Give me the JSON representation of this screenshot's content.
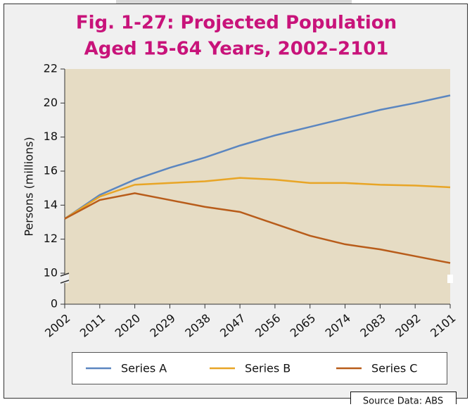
{
  "chart_data": {
    "type": "line",
    "title": "Fig. 1-27: Projected Population",
    "subtitle": "Aged 15-64 Years, 2002–2101",
    "y_label": "Persons (millions)",
    "source": "Source Data: ABS",
    "x": [
      2002,
      2011,
      2020,
      2029,
      2038,
      2047,
      2056,
      2065,
      2074,
      2083,
      2092,
      2101
    ],
    "xlim": [
      2002,
      2101
    ],
    "xticks": [
      2002,
      2011,
      2020,
      2029,
      2038,
      2047,
      2056,
      2065,
      2074,
      2083,
      2092,
      2101
    ],
    "ylim": [
      10,
      22
    ],
    "yticks": [
      0,
      10,
      12,
      14,
      16,
      18,
      20,
      22
    ],
    "axis_break": true,
    "grid": false,
    "legend": "bottom",
    "series": [
      {
        "name": "Series A",
        "color": "#5b86c0",
        "values": [
          13.2,
          14.6,
          15.5,
          16.2,
          16.8,
          17.5,
          18.1,
          18.6,
          19.1,
          19.6,
          20.0,
          20.45
        ]
      },
      {
        "name": "Series B",
        "color": "#e8a526",
        "values": [
          13.2,
          14.5,
          15.2,
          15.3,
          15.4,
          15.6,
          15.5,
          15.3,
          15.3,
          15.2,
          15.15,
          15.05
        ]
      },
      {
        "name": "Series C",
        "color": "#b85c1a",
        "values": [
          13.2,
          14.3,
          14.7,
          14.3,
          13.9,
          13.6,
          12.9,
          12.2,
          11.7,
          11.4,
          11.0,
          10.6
        ]
      }
    ]
  }
}
